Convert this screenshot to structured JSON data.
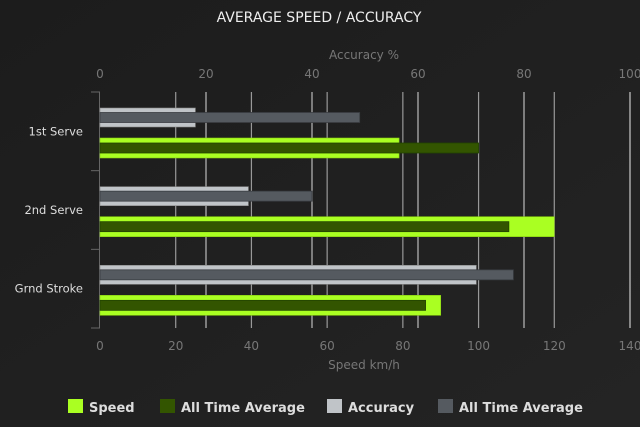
{
  "chart_data": {
    "type": "bar",
    "orientation": "horizontal",
    "title": "AVERAGE SPEED / ACCURACY",
    "categories": [
      "1st Serve",
      "2nd Serve",
      "Grnd Stroke"
    ],
    "x_bottom": {
      "label": "Speed km/h",
      "range": [
        0,
        140
      ],
      "ticks": [
        0,
        20,
        40,
        60,
        80,
        100,
        120,
        140
      ]
    },
    "x_top": {
      "label": "Accuracy %",
      "range": [
        0,
        100
      ],
      "ticks": [
        0,
        20,
        40,
        60,
        80,
        100
      ]
    },
    "grid": true,
    "legend_position": "bottom",
    "series": [
      {
        "name": "Speed",
        "axis": "bottom",
        "color": "#aaff22",
        "values": [
          79,
          120,
          90
        ]
      },
      {
        "name": "All Time Average",
        "axis": "bottom",
        "color": "#335500",
        "values": [
          100,
          108,
          86
        ]
      },
      {
        "name": "Accuracy",
        "axis": "top",
        "color": "#c0c4c8",
        "values": [
          18,
          28,
          71
        ]
      },
      {
        "name": "All Time Average",
        "axis": "top",
        "color": "#555a60",
        "values": [
          49,
          40,
          78
        ]
      }
    ]
  }
}
